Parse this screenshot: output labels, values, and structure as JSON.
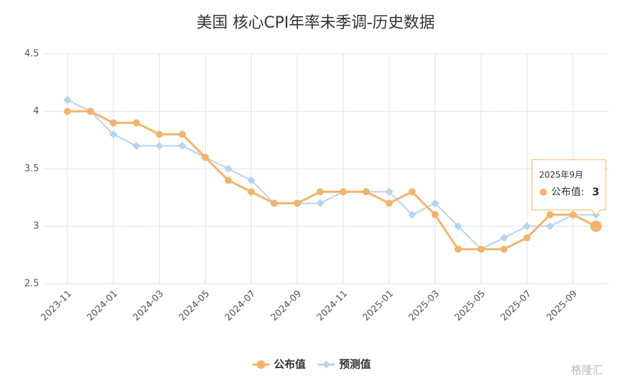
{
  "chart_data": {
    "type": "line",
    "title": "美国 核心CPI年率未季调-历史数据",
    "categories": [
      "2023-11",
      null,
      "2024-01",
      null,
      "2024-03",
      null,
      "2024-05",
      null,
      "2024-07",
      null,
      "2024-09",
      null,
      "2024-11",
      null,
      "2025-01",
      null,
      "2025-03",
      null,
      "2025-05",
      null,
      "2025-07",
      null,
      "2025-09",
      null
    ],
    "series": [
      {
        "name": "公布值",
        "color": "#f5b36a",
        "values": [
          4.0,
          4.0,
          3.9,
          3.9,
          3.8,
          3.8,
          3.6,
          3.4,
          3.3,
          3.2,
          3.2,
          3.3,
          3.3,
          3.3,
          3.2,
          3.3,
          3.1,
          2.8,
          2.8,
          2.8,
          2.9,
          3.1,
          3.1,
          3.0
        ]
      },
      {
        "name": "预测值",
        "color": "#b5d5ec",
        "values": [
          4.1,
          4.0,
          3.8,
          3.7,
          3.7,
          3.7,
          3.6,
          3.5,
          3.4,
          3.2,
          3.2,
          3.2,
          3.3,
          3.3,
          3.3,
          3.1,
          3.2,
          3.0,
          2.8,
          2.9,
          3.0,
          3.0,
          3.1,
          3.1
        ]
      }
    ],
    "ylim": [
      2.5,
      4.5
    ],
    "yticks": [
      2.5,
      3,
      3.5,
      4,
      4.5
    ],
    "grid": true,
    "legend": "bottom",
    "tooltip": {
      "title": "2025年9月",
      "label": "公布值:"
    },
    "watermark": "格隆汇"
  }
}
